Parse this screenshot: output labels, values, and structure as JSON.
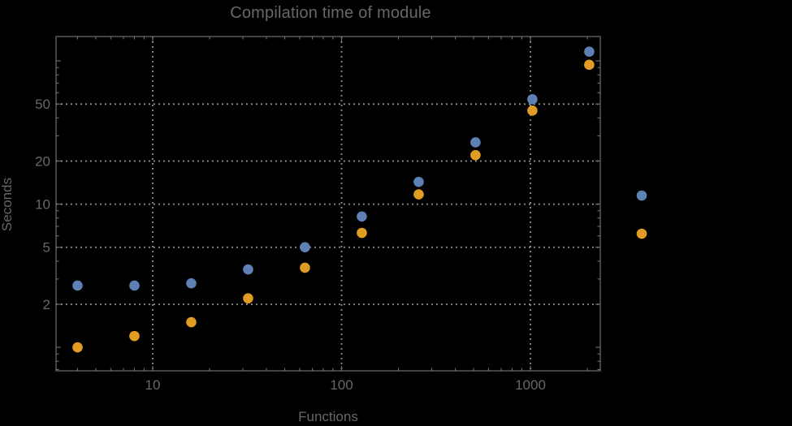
{
  "title": "Compilation time of module",
  "chart_data": {
    "type": "scatter",
    "title": "Compilation time of module",
    "xlabel": "Functions",
    "ylabel": "Seconds",
    "x_scale": "log",
    "y_scale": "log",
    "x_ticks": [
      10,
      100,
      1000
    ],
    "x_tick_labels": [
      "10",
      "100",
      "1000"
    ],
    "y_ticks": [
      2,
      5,
      10,
      20,
      50
    ],
    "y_tick_labels": [
      "2",
      "5",
      "10",
      "20",
      "50"
    ],
    "x_range": [
      3.1,
      2340
    ],
    "y_range": [
      0.69,
      148
    ],
    "grid": {
      "style": "dotted",
      "x_at": [
        10,
        100,
        1000
      ],
      "y_at": [
        2,
        5,
        10,
        20,
        50
      ]
    },
    "x": [
      4,
      8,
      16,
      32,
      64,
      128,
      256,
      512,
      1024,
      2048
    ],
    "series": [
      {
        "name": "blue-series",
        "color": "#5E81B5",
        "values": [
          2.7,
          2.7,
          2.8,
          3.5,
          5.0,
          8.2,
          14.3,
          27,
          54,
          116
        ]
      },
      {
        "name": "orange-series",
        "color": "#E19C24",
        "values": [
          1.0,
          1.2,
          1.5,
          2.2,
          3.6,
          6.3,
          11.7,
          22,
          45,
          94
        ]
      }
    ],
    "legend": {
      "position": "right-outside",
      "labels_visible": false,
      "marker_colors": [
        "#5E81B5",
        "#E19C24"
      ]
    }
  },
  "colors": {
    "background": "#000000",
    "frame": "#6F6F6F",
    "grid": "#A0A0A0",
    "text": "#676767"
  }
}
